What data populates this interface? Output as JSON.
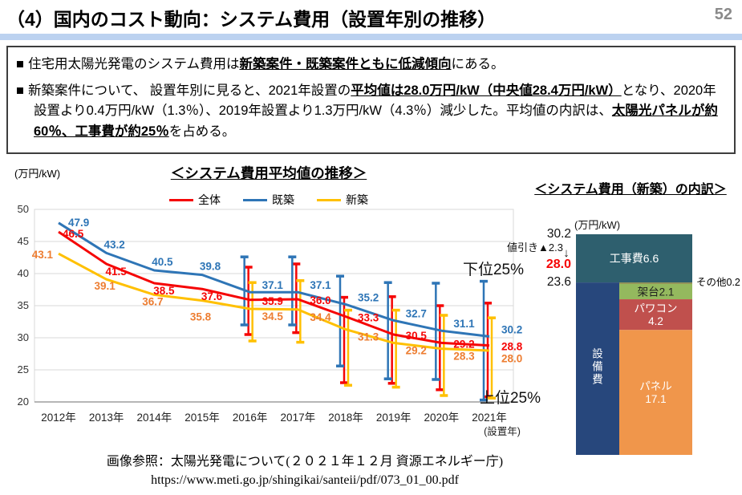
{
  "header": {
    "title": "（4）国内のコスト動向：システム費用（設置年別の推移）",
    "page_number": "52"
  },
  "theme": {
    "accent_bar": "#BCD2F0",
    "page_number_color": "#8A8A8A"
  },
  "summary_box": {
    "marker": "■",
    "bullet1": {
      "pre": "住宅用太陽光発電のシステム費用は",
      "emph": "新築案件・既築案件ともに低減傾向",
      "post": "にある。"
    },
    "bullet2": {
      "pre": "新築案件について、 設置年別に見ると、2021年設置の",
      "emph1": "平均値は28.0万円/kW（中央値28.4万円/kW）",
      "mid": "となり、2020年設置より0.4万円/kW（1.3％）、2019年設置より1.3万円/kW（4.3％）減少した。平均値の内訳は、",
      "emph2": "太陽光パネルが約60％、工事費が約25％",
      "post": "を占める。"
    }
  },
  "chart_data": [
    {
      "type": "line",
      "title": "＜システム費用平均値の推移＞",
      "unit_label": "(万円/kW)",
      "axis_note": "(設置年)",
      "categories": [
        "2012年",
        "2013年",
        "2014年",
        "2015年",
        "2016年",
        "2017年",
        "2018年",
        "2019年",
        "2020年",
        "2021年"
      ],
      "ylim": [
        20,
        50
      ],
      "ytick_step": 5,
      "grid": true,
      "legend_position": "top",
      "annotations": [
        {
          "text": "下位25%",
          "position": "upper-right"
        },
        {
          "text": "上位25%",
          "position": "lower-right"
        }
      ],
      "series": [
        {
          "name": "全体",
          "color": "#F50505",
          "label_color": "#F50505",
          "values": [
            46.5,
            41.5,
            38.5,
            37.6,
            35.9,
            36.0,
            33.3,
            30.5,
            29.2,
            28.8
          ],
          "error_bars": {
            "start_index": 4,
            "ranges": [
              [
                30.5,
                41.0
              ],
              [
                30.8,
                41.5
              ],
              [
                23.0,
                36.3
              ],
              [
                22.9,
                36.4
              ],
              [
                21.9,
                35.0
              ],
              [
                20.8,
                35.4
              ]
            ]
          }
        },
        {
          "name": "既築",
          "color": "#2E75B6",
          "label_color": "#2E75B6",
          "values": [
            47.9,
            43.2,
            40.5,
            39.8,
            37.1,
            37.1,
            35.2,
            32.7,
            31.1,
            30.2
          ],
          "error_bars": {
            "start_index": 4,
            "ranges": [
              [
                32.0,
                42.6
              ],
              [
                32.0,
                42.6
              ],
              [
                25.6,
                39.6
              ],
              [
                23.6,
                38.6
              ],
              [
                23.5,
                38.5
              ],
              [
                20.3,
                38.8
              ]
            ]
          }
        },
        {
          "name": "新築",
          "color": "#FFC000",
          "label_color": "#ED7D31",
          "values": [
            43.1,
            39.1,
            36.7,
            35.8,
            34.5,
            34.4,
            31.3,
            29.2,
            28.3,
            28.0
          ],
          "error_bars": {
            "start_index": 4,
            "ranges": [
              [
                29.5,
                38.6
              ],
              [
                29.3,
                38.9
              ],
              [
                22.6,
                34.3
              ],
              [
                22.3,
                34.3
              ],
              [
                21.0,
                33.5
              ],
              [
                20.6,
                33.1
              ]
            ]
          }
        }
      ]
    },
    {
      "type": "stacked-bar",
      "title": "＜システム費用（新築）の内訳＞",
      "unit_label": "(万円/kW)",
      "total": 30.2,
      "side_labels": {
        "gross": "30.2",
        "discount": "値引き▲2.3",
        "arrow": "↓",
        "net": "28.0",
        "net_color": "#F50505",
        "subtotal": "23.6"
      },
      "construction": {
        "label": "工事費6.6",
        "value": 6.6,
        "color": "#2E5F6E"
      },
      "equipment_column": {
        "label": "設備費",
        "value": 23.6,
        "color": "#27477C"
      },
      "equipment_segments": [
        {
          "label": "その他0.2",
          "lines": [
            "その他0.2"
          ],
          "value": 0.2,
          "color": "#8C8B4B",
          "label_outside": true,
          "label_color": "#000000"
        },
        {
          "label": "架台2.1",
          "lines": [
            "架台2.1"
          ],
          "value": 2.1,
          "color": "#94B95E",
          "label_outside": false,
          "label_color": "#1F1F1F"
        },
        {
          "label": "パワコン4.2",
          "lines": [
            "パワコン",
            "4.2"
          ],
          "value": 4.2,
          "color": "#C0504D",
          "label_outside": false,
          "label_color": "#FFFFFF"
        },
        {
          "label": "パネル17.1",
          "lines": [
            "パネル",
            "17.1"
          ],
          "value": 17.1,
          "color": "#F0964B",
          "label_outside": false,
          "label_color": "#FFFFFF"
        }
      ]
    }
  ],
  "footer": {
    "line1": "画像参照：太陽光発電について(２０２１年１２月 資源エネルギー庁)",
    "line2": "https://www.meti.go.jp/shingikai/santeii/pdf/073_01_00.pdf"
  }
}
